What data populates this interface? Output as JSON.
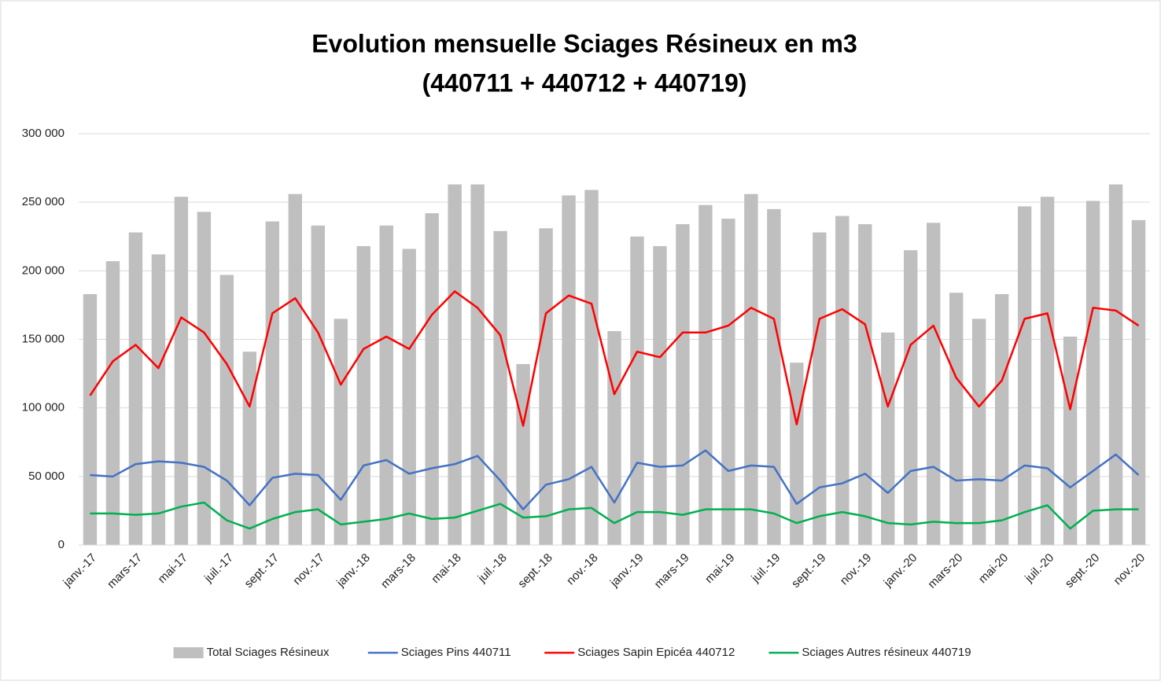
{
  "chart_data": {
    "type": "combo",
    "title": [
      "Evolution mensuelle Sciages Résineux en m3",
      "(440711 + 440712 + 440719)"
    ],
    "categories": [
      "janv.-17",
      null,
      "mars-17",
      null,
      "mai-17",
      null,
      "juil.-17",
      null,
      "sept.-17",
      null,
      "nov.-17",
      null,
      "janv.-18",
      null,
      "mars-18",
      null,
      "mai-18",
      null,
      "juil.-18",
      null,
      "sept.-18",
      null,
      "nov.-18",
      null,
      "janv.-19",
      null,
      "mars-19",
      null,
      "mai-19",
      null,
      "juil.-19",
      null,
      "sept.-19",
      null,
      "nov.-19",
      null,
      "janv.-20",
      null,
      "mars-20",
      null,
      "mai-20",
      null,
      "juil.-20",
      null,
      "sept.-20",
      null,
      "nov.-20"
    ],
    "series": [
      {
        "name": "Total Sciages Résineux",
        "type": "bar",
        "color": "#bfbfbf",
        "values": [
          183000,
          207000,
          228000,
          212000,
          254000,
          243000,
          197000,
          141000,
          236000,
          256000,
          233000,
          165000,
          218000,
          233000,
          216000,
          242000,
          263000,
          263000,
          229000,
          132000,
          231000,
          255000,
          259000,
          156000,
          225000,
          218000,
          234000,
          248000,
          238000,
          256000,
          245000,
          133000,
          228000,
          240000,
          234000,
          155000,
          215000,
          235000,
          184000,
          165000,
          183000,
          247000,
          254000,
          152000,
          251000,
          263000,
          237000
        ]
      },
      {
        "name": "Sciages Pins 440711",
        "type": "line",
        "color": "#4472c4",
        "values": [
          51000,
          50000,
          59000,
          61000,
          60000,
          57000,
          47000,
          29000,
          49000,
          52000,
          51000,
          33000,
          58000,
          62000,
          52000,
          56000,
          59000,
          65000,
          47000,
          26000,
          44000,
          48000,
          57000,
          31000,
          60000,
          57000,
          58000,
          69000,
          54000,
          58000,
          57000,
          30000,
          42000,
          45000,
          52000,
          38000,
          54000,
          57000,
          47000,
          48000,
          47000,
          58000,
          56000,
          42000,
          54000,
          66000,
          51000
        ]
      },
      {
        "name": "Sciages Sapin Epicéa 440712",
        "type": "line",
        "color": "#ff0000",
        "values": [
          109000,
          134000,
          146000,
          129000,
          166000,
          155000,
          132000,
          101000,
          169000,
          180000,
          155000,
          117000,
          143000,
          152000,
          143000,
          168000,
          185000,
          173000,
          153000,
          87000,
          169000,
          182000,
          176000,
          110000,
          141000,
          137000,
          155000,
          155000,
          160000,
          173000,
          165000,
          88000,
          165000,
          172000,
          161000,
          101000,
          146000,
          160000,
          122000,
          101000,
          120000,
          165000,
          169000,
          99000,
          173000,
          171000,
          160000
        ]
      },
      {
        "name": "Sciages Autres résineux 440719",
        "type": "line",
        "color": "#00b050",
        "values": [
          23000,
          23000,
          22000,
          23000,
          28000,
          31000,
          18000,
          12000,
          19000,
          24000,
          26000,
          15000,
          17000,
          19000,
          23000,
          19000,
          20000,
          25000,
          30000,
          20000,
          21000,
          26000,
          27000,
          16000,
          24000,
          24000,
          22000,
          26000,
          26000,
          26000,
          23000,
          16000,
          21000,
          24000,
          21000,
          16000,
          15000,
          17000,
          16000,
          16000,
          18000,
          24000,
          29000,
          12000,
          25000,
          26000,
          26000
        ]
      }
    ],
    "ylim": [
      0,
      300000
    ],
    "yticks": [
      0,
      {
        "value": 50000,
        "label": "50 000"
      },
      {
        "value": 100000,
        "label": "100 000"
      },
      {
        "value": 150000,
        "label": "150 000"
      },
      {
        "value": 200000,
        "label": "200 000"
      },
      {
        "value": 250000,
        "label": "250 000"
      },
      {
        "value": 300000,
        "label": "300 000"
      }
    ],
    "grid": true,
    "legend": "bottom"
  }
}
